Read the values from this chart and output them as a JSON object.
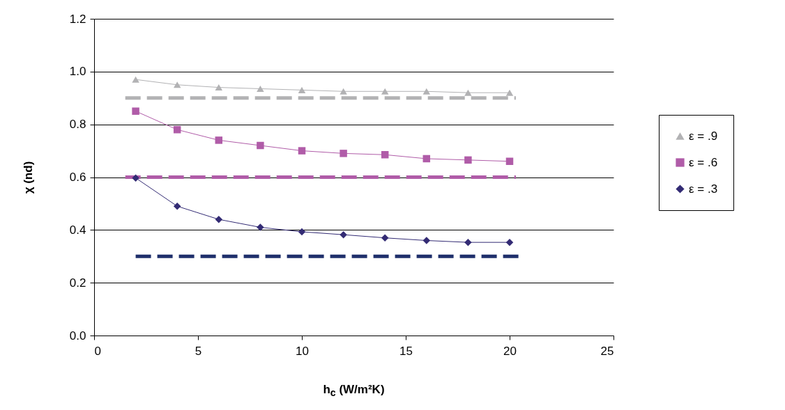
{
  "chart_data": {
    "type": "line",
    "xlabel": "h$_{c}$ (W/m²K)",
    "ylabel": "χ (nd)",
    "x": [
      2,
      4,
      6,
      8,
      10,
      12,
      14,
      16,
      18,
      20
    ],
    "series": [
      {
        "name": "ε = .9",
        "color": "#b2b2b4",
        "marker": "triangle",
        "line_style": "solid",
        "values": [
          0.97,
          0.95,
          0.94,
          0.935,
          0.93,
          0.925,
          0.925,
          0.925,
          0.92,
          0.92
        ]
      },
      {
        "name": "ε = .6",
        "color": "#b05ca8",
        "marker": "square",
        "line_style": "solid",
        "values": [
          0.85,
          0.78,
          0.74,
          0.72,
          0.7,
          0.69,
          0.685,
          0.67,
          0.665,
          0.66
        ]
      },
      {
        "name": "ε = .3",
        "color": "#332b74",
        "marker": "diamond",
        "line_style": "solid",
        "values": [
          0.597,
          0.49,
          0.44,
          0.41,
          0.393,
          0.382,
          0.37,
          0.36,
          0.353,
          0.353
        ]
      },
      {
        "color": "#b2b2b4",
        "marker": "none",
        "line_style": "dashed",
        "x": [
          1.5,
          20.3
        ],
        "values": [
          0.9,
          0.9
        ]
      },
      {
        "color": "#b05ca8",
        "marker": "none",
        "line_style": "dashed",
        "x": [
          1.5,
          20.3
        ],
        "values": [
          0.6,
          0.6
        ]
      },
      {
        "color": "#1f2f6b",
        "marker": "none",
        "line_style": "dashed",
        "x": [
          2,
          20.5
        ],
        "values": [
          0.3,
          0.3
        ]
      }
    ],
    "xlim": [
      0,
      25
    ],
    "xticks": [
      0,
      5,
      10,
      15,
      20,
      25
    ],
    "ylim": [
      0,
      1.2
    ],
    "yticks": [
      {
        "value": 0,
        "label": "0.0"
      },
      {
        "value": 0.2,
        "label": "0.2"
      },
      {
        "value": 0.4,
        "label": "0.4"
      },
      {
        "value": 0.6,
        "label": "0.6"
      },
      {
        "value": 0.8,
        "label": "0.8"
      },
      {
        "value": 1.0,
        "label": "1.0"
      },
      {
        "value": 1.2,
        "label": "1.2"
      }
    ],
    "grid": "y",
    "legend": "right"
  }
}
